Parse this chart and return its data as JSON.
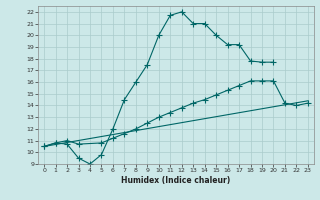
{
  "title": "",
  "xlabel": "Humidex (Indice chaleur)",
  "bg_color": "#cce8e8",
  "grid_color": "#aacccc",
  "line_color": "#006666",
  "xlim": [
    -0.5,
    23.5
  ],
  "ylim": [
    9,
    22.5
  ],
  "xticks": [
    0,
    1,
    2,
    3,
    4,
    5,
    6,
    7,
    8,
    9,
    10,
    11,
    12,
    13,
    14,
    15,
    16,
    17,
    18,
    19,
    20,
    21,
    22,
    23
  ],
  "yticks": [
    9,
    10,
    11,
    12,
    13,
    14,
    15,
    16,
    17,
    18,
    19,
    20,
    21,
    22
  ],
  "line1_x": [
    0,
    1,
    2,
    3,
    4,
    5,
    6,
    7,
    8,
    9,
    10,
    11,
    12,
    13,
    14,
    15,
    16,
    17,
    18,
    19,
    20
  ],
  "line1_y": [
    10.5,
    10.8,
    10.7,
    9.5,
    9.0,
    9.8,
    12.0,
    14.5,
    16.0,
    17.5,
    20.0,
    21.7,
    22.0,
    21.0,
    21.0,
    20.0,
    19.2,
    19.2,
    17.8,
    17.7,
    17.7
  ],
  "line2_x": [
    0,
    1,
    2,
    3,
    5,
    6,
    7,
    8,
    9,
    10,
    11,
    12,
    13,
    14,
    15,
    16,
    17,
    18,
    19,
    20,
    21,
    22,
    23
  ],
  "line2_y": [
    10.5,
    10.8,
    11.0,
    10.7,
    10.8,
    11.2,
    11.6,
    12.0,
    12.5,
    13.0,
    13.4,
    13.8,
    14.2,
    14.5,
    14.9,
    15.3,
    15.7,
    16.1,
    16.1,
    16.1,
    14.2,
    14.0,
    14.2
  ],
  "line3_x": [
    0,
    23
  ],
  "line3_y": [
    10.5,
    14.4
  ]
}
